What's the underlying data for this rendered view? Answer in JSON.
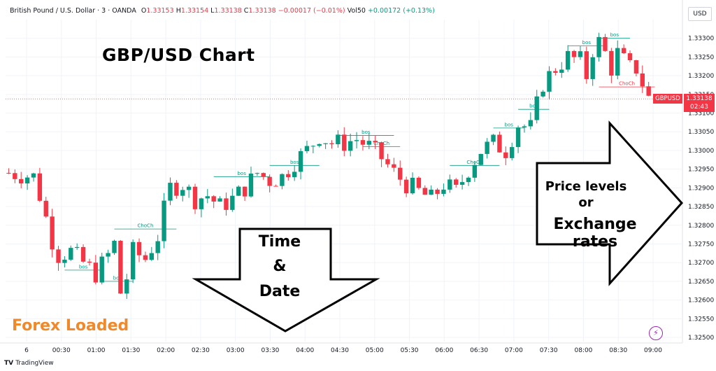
{
  "legend": {
    "symbol": "British Pound / U.S. Dollar · 3 · OANDA",
    "open_label": "O",
    "open": "1.33153",
    "high_label": "H",
    "high": "1.33154",
    "low_label": "L",
    "low": "1.33138",
    "close_label": "C",
    "close": "1.33138",
    "change": "−0.00017 (−0.01%)",
    "vol_label": "Vol50",
    "vol_change": "+0.00172 (+0.13%)"
  },
  "currency_button": "USD",
  "annotations": {
    "title": "GBP/USD  Chart",
    "time_line1": "Time",
    "time_line2": "&",
    "time_line3": "Date",
    "price_line1": "Price levels",
    "price_line2": "or",
    "price_line3": "Exchange rates",
    "brand": "Forex Loaded",
    "footer": "TradingView"
  },
  "current_price": {
    "symbol": "GBPUSD",
    "price": "1.33138",
    "countdown": "02:43",
    "value": 1.33138
  },
  "colors": {
    "up": "#089981",
    "down": "#f23645",
    "bos": "#089981",
    "choch_up": "#089981",
    "choch_down": "#f23645",
    "brand": "#f0892b"
  },
  "chart_data": {
    "type": "candlestick",
    "ylim": [
      1.325,
      1.3335
    ],
    "y_ticks": [
      "1.33300",
      "1.33250",
      "1.33200",
      "1.33150",
      "1.33100",
      "1.33050",
      "1.33000",
      "1.32950",
      "1.32900",
      "1.32850",
      "1.32800",
      "1.32750",
      "1.32700",
      "1.32650",
      "1.32600",
      "1.32550",
      "1.32500"
    ],
    "x_ticks": [
      "6",
      "00:30",
      "01:00",
      "01:30",
      "02:00",
      "02:30",
      "03:00",
      "03:30",
      "04:00",
      "04:30",
      "05:00",
      "05:30",
      "06:00",
      "06:30",
      "07:00",
      "07:30",
      "08:00",
      "08:30",
      "09:00"
    ],
    "close_path": [
      [
        0,
        1.3294
      ],
      [
        4,
        1.3293
      ],
      [
        5,
        1.3288
      ],
      [
        6,
        1.3282
      ],
      [
        7,
        1.3276
      ],
      [
        8,
        1.3272
      ],
      [
        10,
        1.3273
      ],
      [
        12,
        1.327
      ],
      [
        14,
        1.3267
      ],
      [
        16,
        1.3272
      ],
      [
        17,
        1.3275
      ],
      [
        18,
        1.3262
      ],
      [
        19,
        1.3266
      ],
      [
        20,
        1.3273
      ],
      [
        22,
        1.3271
      ],
      [
        24,
        1.3277
      ],
      [
        25,
        1.3284
      ],
      [
        26,
        1.329
      ],
      [
        28,
        1.3291
      ],
      [
        30,
        1.3287
      ],
      [
        32,
        1.3288
      ],
      [
        34,
        1.3285
      ],
      [
        36,
        1.3287
      ],
      [
        38,
        1.329
      ],
      [
        40,
        1.3294
      ],
      [
        42,
        1.3292
      ],
      [
        44,
        1.3293
      ],
      [
        46,
        1.3297
      ],
      [
        48,
        1.33
      ],
      [
        50,
        1.3304
      ],
      [
        52,
        1.3302
      ],
      [
        54,
        1.3302
      ],
      [
        56,
        1.3303
      ],
      [
        58,
        1.3301
      ],
      [
        60,
        1.3298
      ],
      [
        62,
        1.3294
      ],
      [
        64,
        1.3291
      ],
      [
        66,
        1.3289
      ],
      [
        68,
        1.3287
      ],
      [
        70,
        1.3291
      ],
      [
        72,
        1.3289
      ],
      [
        74,
        1.3295
      ],
      [
        76,
        1.33
      ],
      [
        78,
        1.3302
      ],
      [
        80,
        1.33
      ],
      [
        82,
        1.3307
      ],
      [
        84,
        1.3306
      ],
      [
        85,
        1.3312
      ],
      [
        86,
        1.3318
      ],
      [
        88,
        1.3322
      ],
      [
        90,
        1.3325
      ],
      [
        92,
        1.3324
      ],
      [
        93,
        1.332
      ],
      [
        94,
        1.3327
      ],
      [
        95,
        1.3329
      ],
      [
        96,
        1.3326
      ],
      [
        97,
        1.3322
      ],
      [
        98,
        1.3326
      ],
      [
        99,
        1.3324
      ],
      [
        100,
        1.3322
      ],
      [
        101,
        1.3322
      ],
      [
        102,
        1.3318
      ],
      [
        103,
        1.3314
      ]
    ],
    "structure_labels": [
      {
        "text": "bos",
        "price": 1.3268,
        "from": 9,
        "to": 15
      },
      {
        "text": "bos",
        "price": 1.3265,
        "from": 15,
        "to": 20
      },
      {
        "text": "ChoCh",
        "price": 1.3279,
        "from": 17,
        "to": 27
      },
      {
        "text": "bos",
        "price": 1.3293,
        "from": 33,
        "to": 42
      },
      {
        "text": "bos",
        "price": 1.3296,
        "from": 42,
        "to": 50
      },
      {
        "text": "bos",
        "price": 1.3304,
        "from": 53,
        "to": 62
      },
      {
        "text": "ChoCh",
        "price": 1.3301,
        "from": 57,
        "to": 63
      },
      {
        "text": "ChoCh",
        "price": 1.3296,
        "from": 71,
        "to": 79
      },
      {
        "text": "bos",
        "price": 1.3306,
        "from": 78,
        "to": 83
      },
      {
        "text": "bos",
        "price": 1.3311,
        "from": 82,
        "to": 87
      },
      {
        "text": "bos",
        "price": 1.3328,
        "from": 90,
        "to": 96
      },
      {
        "text": "bos",
        "price": 1.333,
        "from": 95,
        "to": 100
      },
      {
        "text": "ChoCh",
        "price": 1.3317,
        "from": 95,
        "to": 104
      }
    ]
  }
}
